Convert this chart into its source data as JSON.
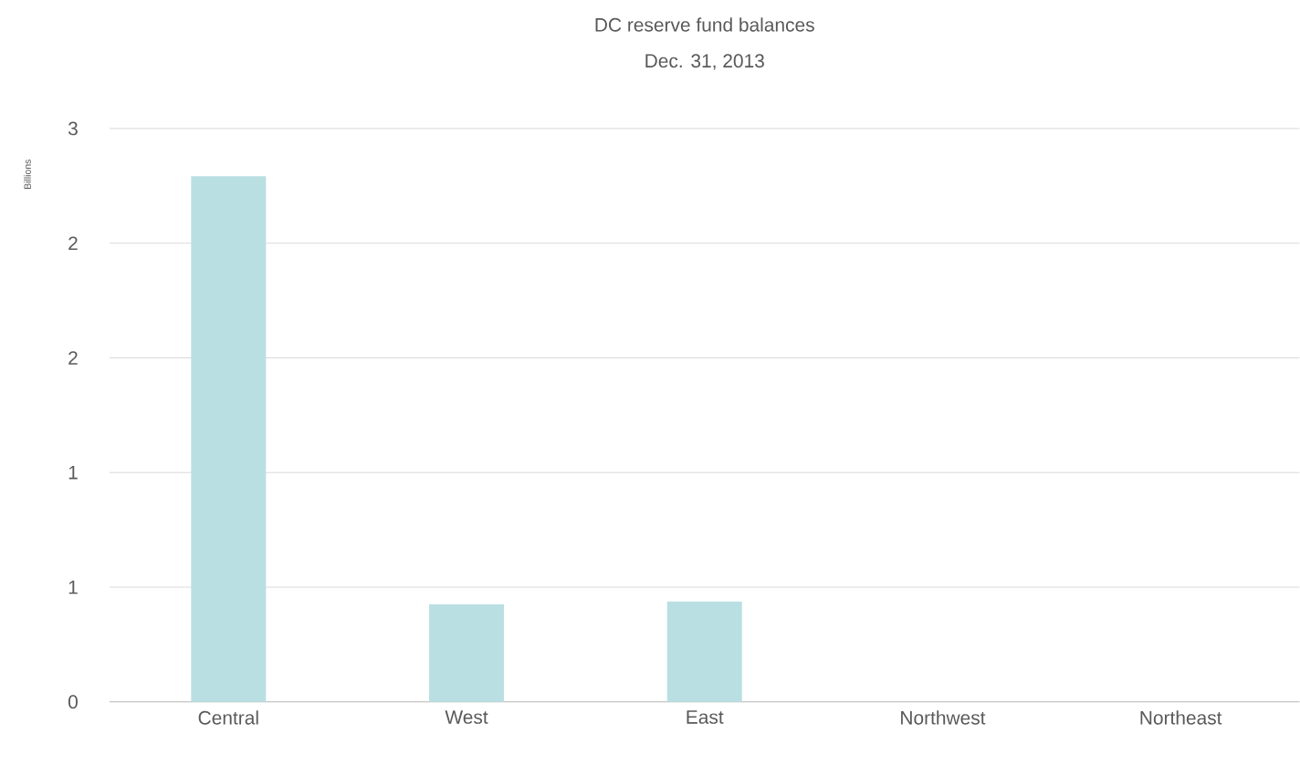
{
  "chart_data": {
    "type": "bar",
    "title": "DC reserve fund balances",
    "subtitle": "Dec. 31, 2013",
    "ylabel": "Billions",
    "categories": [
      "Central",
      "West",
      "East",
      "Northwest",
      "Northeast"
    ],
    "values": [
      2.75,
      0.51,
      0.525,
      0,
      0
    ],
    "color": "#b9dfe2",
    "ylim": [
      0,
      3
    ],
    "yticks": [
      0,
      {
        "value": 0.6,
        "label": "1"
      },
      {
        "value": 1.2,
        "label": "1"
      },
      {
        "value": 1.8,
        "label": "2"
      },
      {
        "value": 2.4,
        "label": "2"
      },
      3
    ],
    "grid": "y"
  }
}
